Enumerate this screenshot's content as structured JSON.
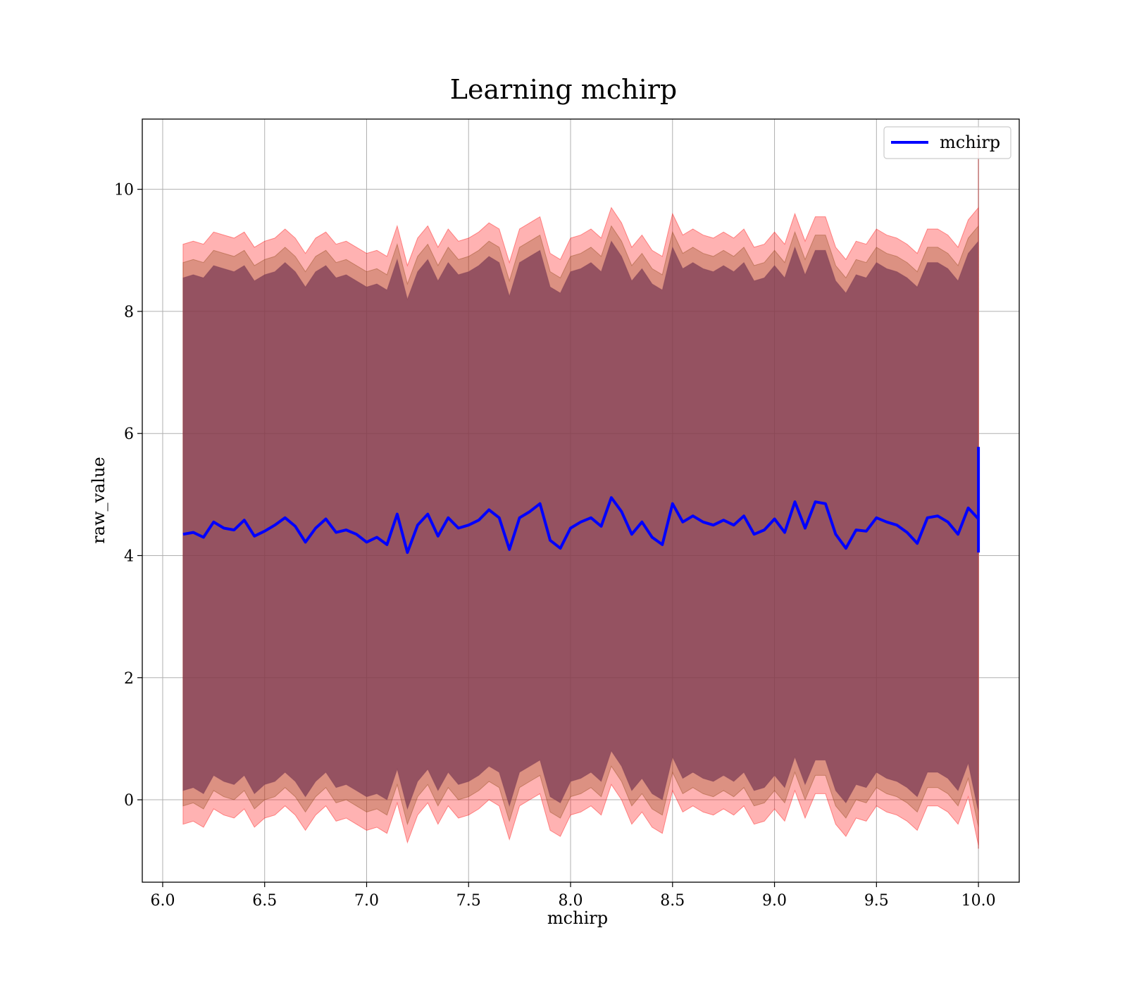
{
  "chart_data": {
    "type": "line",
    "title": "Learning mchirp",
    "xlabel": "mchirp",
    "ylabel": "raw_value",
    "xlim": [
      5.9,
      10.2
    ],
    "ylim": [
      -1.35,
      11.15
    ],
    "xticks": [
      6.0,
      6.5,
      7.0,
      7.5,
      8.0,
      8.5,
      9.0,
      9.5,
      10.0
    ],
    "xtick_labels": [
      "6.0",
      "6.5",
      "7.0",
      "7.5",
      "8.0",
      "8.5",
      "9.0",
      "9.5",
      "10.0"
    ],
    "yticks": [
      0,
      2,
      4,
      6,
      8,
      10
    ],
    "ytick_labels": [
      "0",
      "2",
      "4",
      "6",
      "8",
      "10"
    ],
    "grid": true,
    "legend": {
      "placement": "top-right",
      "entries": [
        "mchirp"
      ]
    },
    "colors": {
      "line": "#0000ff",
      "band": "#ff0000",
      "inner_band": "#8b4513",
      "core": "#7d3d55"
    },
    "series": [
      {
        "name": "mchirp",
        "x": [
          6.1,
          6.15,
          6.2,
          6.25,
          6.3,
          6.35,
          6.4,
          6.45,
          6.5,
          6.55,
          6.6,
          6.65,
          6.7,
          6.75,
          6.8,
          6.85,
          6.9,
          6.95,
          7.0,
          7.05,
          7.1,
          7.15,
          7.2,
          7.25,
          7.3,
          7.35,
          7.4,
          7.45,
          7.5,
          7.55,
          7.6,
          7.65,
          7.7,
          7.75,
          7.8,
          7.85,
          7.9,
          7.95,
          8.0,
          8.05,
          8.1,
          8.15,
          8.2,
          8.25,
          8.3,
          8.35,
          8.4,
          8.45,
          8.5,
          8.55,
          8.6,
          8.65,
          8.7,
          8.75,
          8.8,
          8.85,
          8.9,
          8.95,
          9.0,
          9.05,
          9.1,
          9.15,
          9.2,
          9.25,
          9.3,
          9.35,
          9.4,
          9.45,
          9.5,
          9.55,
          9.6,
          9.65,
          9.7,
          9.75,
          9.8,
          9.85,
          9.9,
          9.95,
          10.0
        ],
        "values": [
          4.35,
          4.38,
          4.3,
          4.55,
          4.45,
          4.42,
          4.58,
          4.32,
          4.4,
          4.5,
          4.62,
          4.48,
          4.22,
          4.45,
          4.6,
          4.38,
          4.42,
          4.35,
          4.22,
          4.3,
          4.18,
          4.68,
          4.05,
          4.5,
          4.68,
          4.32,
          4.62,
          4.45,
          4.5,
          4.58,
          4.75,
          4.62,
          4.1,
          4.62,
          4.72,
          4.85,
          4.25,
          4.12,
          4.45,
          4.55,
          4.62,
          4.48,
          4.95,
          4.72,
          4.35,
          4.55,
          4.3,
          4.18,
          4.85,
          4.55,
          4.65,
          4.55,
          4.5,
          4.58,
          4.5,
          4.65,
          4.35,
          4.42,
          4.6,
          4.38,
          4.88,
          4.45,
          4.88,
          4.85,
          4.35,
          4.12,
          4.42,
          4.4,
          4.62,
          4.55,
          4.5,
          4.38,
          4.2,
          4.62,
          4.65,
          4.55,
          4.35,
          4.78,
          4.6
        ],
        "end_spike": [
          4.05,
          5.78
        ]
      },
      {
        "name": "",
        "type": "band",
        "values_upper": [
          9.1,
          9.15,
          9.1,
          9.3,
          9.25,
          9.2,
          9.3,
          9.05,
          9.15,
          9.2,
          9.35,
          9.2,
          8.95,
          9.2,
          9.3,
          9.1,
          9.15,
          9.05,
          8.95,
          9.0,
          8.9,
          9.4,
          8.75,
          9.2,
          9.4,
          9.05,
          9.35,
          9.15,
          9.2,
          9.3,
          9.45,
          9.35,
          8.8,
          9.35,
          9.45,
          9.55,
          8.95,
          8.85,
          9.2,
          9.25,
          9.35,
          9.2,
          9.7,
          9.45,
          9.05,
          9.25,
          9.0,
          8.9,
          9.6,
          9.25,
          9.35,
          9.25,
          9.2,
          9.3,
          9.2,
          9.35,
          9.05,
          9.1,
          9.3,
          9.1,
          9.6,
          9.15,
          9.55,
          9.55,
          9.05,
          8.85,
          9.15,
          9.1,
          9.35,
          9.25,
          9.2,
          9.1,
          8.95,
          9.35,
          9.35,
          9.25,
          9.05,
          9.5,
          9.7
        ],
        "values_lower": [
          -0.4,
          -0.35,
          -0.45,
          -0.15,
          -0.25,
          -0.3,
          -0.15,
          -0.45,
          -0.3,
          -0.25,
          -0.1,
          -0.25,
          -0.5,
          -0.25,
          -0.1,
          -0.35,
          -0.3,
          -0.4,
          -0.5,
          -0.45,
          -0.55,
          -0.05,
          -0.7,
          -0.25,
          -0.05,
          -0.4,
          -0.1,
          -0.3,
          -0.25,
          -0.15,
          0.0,
          -0.1,
          -0.65,
          -0.1,
          0.0,
          0.1,
          -0.5,
          -0.6,
          -0.25,
          -0.2,
          -0.1,
          -0.25,
          0.25,
          0.0,
          -0.4,
          -0.2,
          -0.45,
          -0.55,
          0.15,
          -0.2,
          -0.1,
          -0.2,
          -0.25,
          -0.15,
          -0.25,
          -0.1,
          -0.4,
          -0.35,
          -0.15,
          -0.35,
          0.15,
          -0.3,
          0.1,
          0.1,
          -0.4,
          -0.6,
          -0.3,
          -0.35,
          -0.1,
          -0.2,
          -0.25,
          -0.35,
          -0.5,
          -0.1,
          -0.1,
          -0.2,
          -0.4,
          0.05,
          -0.75
        ]
      }
    ]
  }
}
